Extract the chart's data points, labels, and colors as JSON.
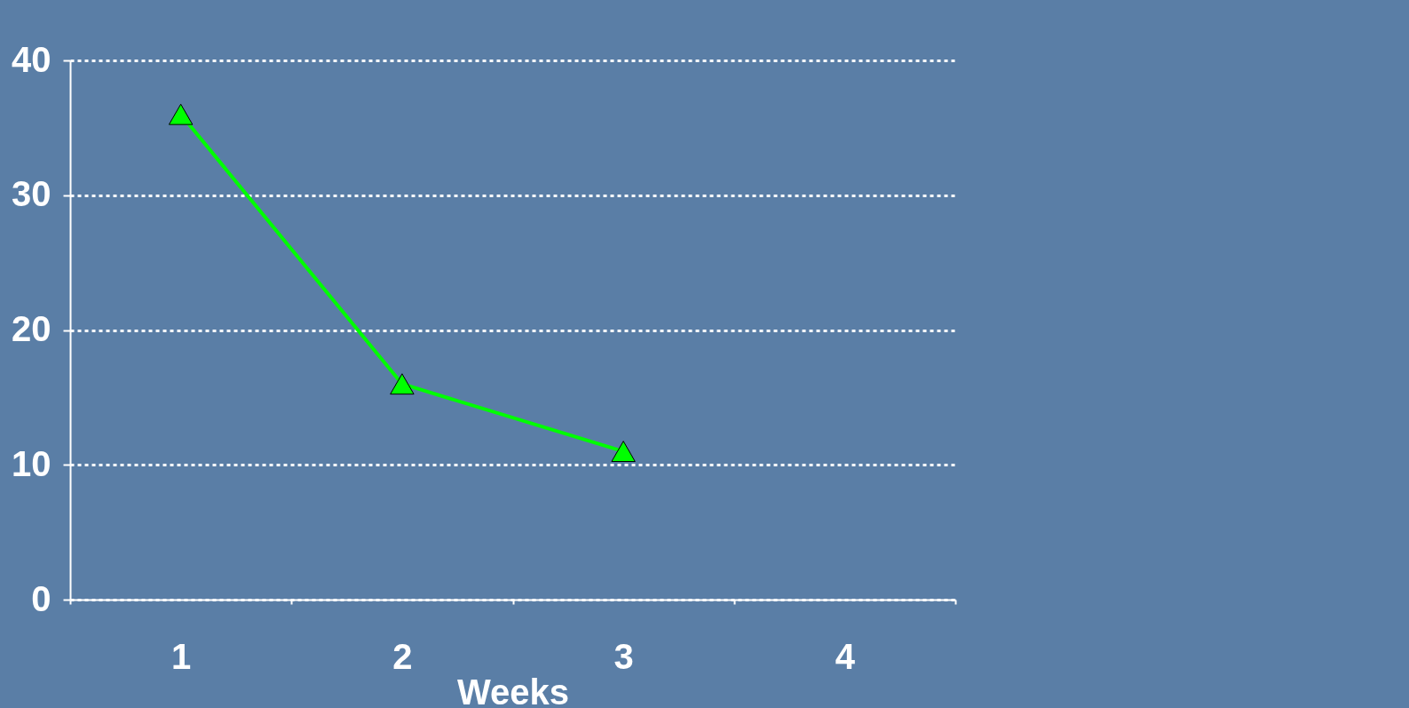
{
  "chart_data": {
    "type": "line",
    "xlabel": "Weeks",
    "categories": [
      "1",
      "2",
      "3",
      "4"
    ],
    "series": [
      {
        "color": "#00ff00",
        "values": [
          36,
          16,
          11,
          null
        ]
      }
    ],
    "ylim": [
      0,
      40
    ],
    "yticks": [
      0,
      10,
      20,
      30,
      40
    ],
    "grid": "y",
    "legend": false,
    "marker": "triangle",
    "line_style": "solid"
  }
}
